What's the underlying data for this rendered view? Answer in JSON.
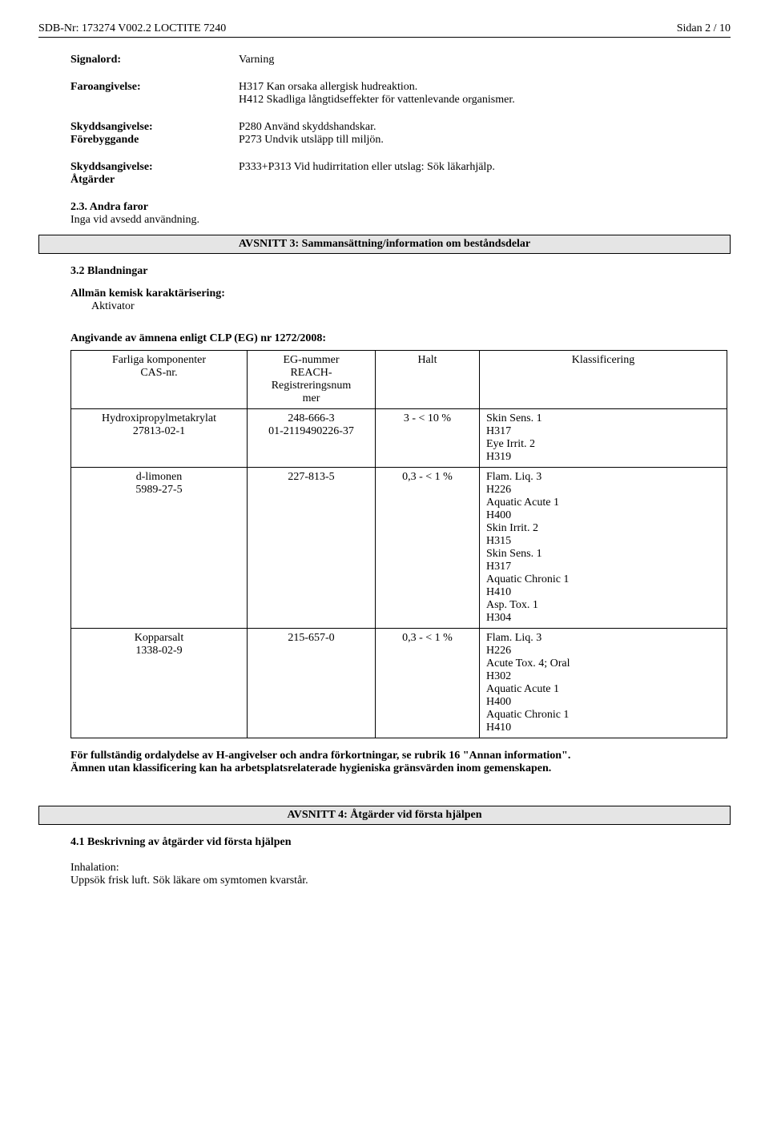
{
  "header": {
    "left": "SDB-Nr: 173274   V002.2    LOCTITE 7240",
    "right": "Sidan 2 / 10"
  },
  "signal": {
    "label": "Signalord:",
    "value": "Varning"
  },
  "hazard": {
    "label": "Faroangivelse:",
    "lines": [
      "H317 Kan orsaka allergisk hudreaktion.",
      "H412 Skadliga långtidseffekter för vattenlevande organismer."
    ]
  },
  "precaution_prevent": {
    "label1": "Skyddsangivelse:",
    "label2": "Förebyggande",
    "lines": [
      "P280 Använd skyddshandskar.",
      "P273 Undvik utsläpp till miljön."
    ]
  },
  "precaution_response": {
    "label1": "Skyddsangivelse:",
    "label2": "Åtgärder",
    "line": "P333+P313 Vid hudirritation eller utslag: Sök läkarhjälp."
  },
  "other_hazards": {
    "title": "2.3. Andra faror",
    "text": "Inga vid avsedd användning."
  },
  "section3": {
    "bar": "AVSNITT 3: Sammansättning/information om beståndsdelar",
    "mix_title": "3.2 Blandningar",
    "chem_label": "Allmän kemisk karaktärisering:",
    "chem_value": "Aktivator",
    "clp_title": "Angivande av ämnena enligt CLP (EG) nr 1272/2008:",
    "table": {
      "headers": {
        "c1a": "Farliga komponenter",
        "c1b": "CAS-nr.",
        "c2a": "EG-nummer",
        "c2b": "REACH-",
        "c2c": "Registreringsnum",
        "c2d": "mer",
        "c3": "Halt",
        "c4": "Klassificering"
      },
      "rows": [
        {
          "name": "Hydroxipropylmetakrylat",
          "cas": "27813-02-1",
          "eg": "248-666-3",
          "reach": "01-2119490226-37",
          "halt": "3 - <  10 %",
          "class": "Skin Sens. 1\nH317\nEye Irrit. 2\nH319"
        },
        {
          "name": "d-limonen",
          "cas": "5989-27-5",
          "eg": "227-813-5",
          "reach": "",
          "halt": "0,3 - <   1 %",
          "class": "Flam. Liq. 3\nH226\nAquatic Acute 1\nH400\nSkin Irrit. 2\nH315\nSkin Sens. 1\nH317\nAquatic Chronic 1\nH410\nAsp. Tox. 1\nH304"
        },
        {
          "name": "Kopparsalt",
          "cas": "1338-02-9",
          "eg": "215-657-0",
          "reach": "",
          "halt": "0,3 - <   1 %",
          "class": "Flam. Liq. 3\nH226\nAcute Tox. 4;  Oral\nH302\nAquatic Acute 1\nH400\nAquatic Chronic 1\nH410"
        }
      ]
    },
    "footnote1": "För fullständig ordalydelse av H-angivelser och andra förkortningar, se rubrik 16 \"Annan information\".",
    "footnote2": "Ämnen utan klassificering kan ha arbetsplatsrelaterade hygieniska gränsvärden inom gemenskapen."
  },
  "section4": {
    "bar": "AVSNITT 4: Åtgärder vid första hjälpen",
    "sub": "4.1 Beskrivning av åtgärder vid första hjälpen",
    "inh_label": "Inhalation:",
    "inh_text": "Uppsök frisk luft. Sök läkare om symtomen kvarstår."
  }
}
